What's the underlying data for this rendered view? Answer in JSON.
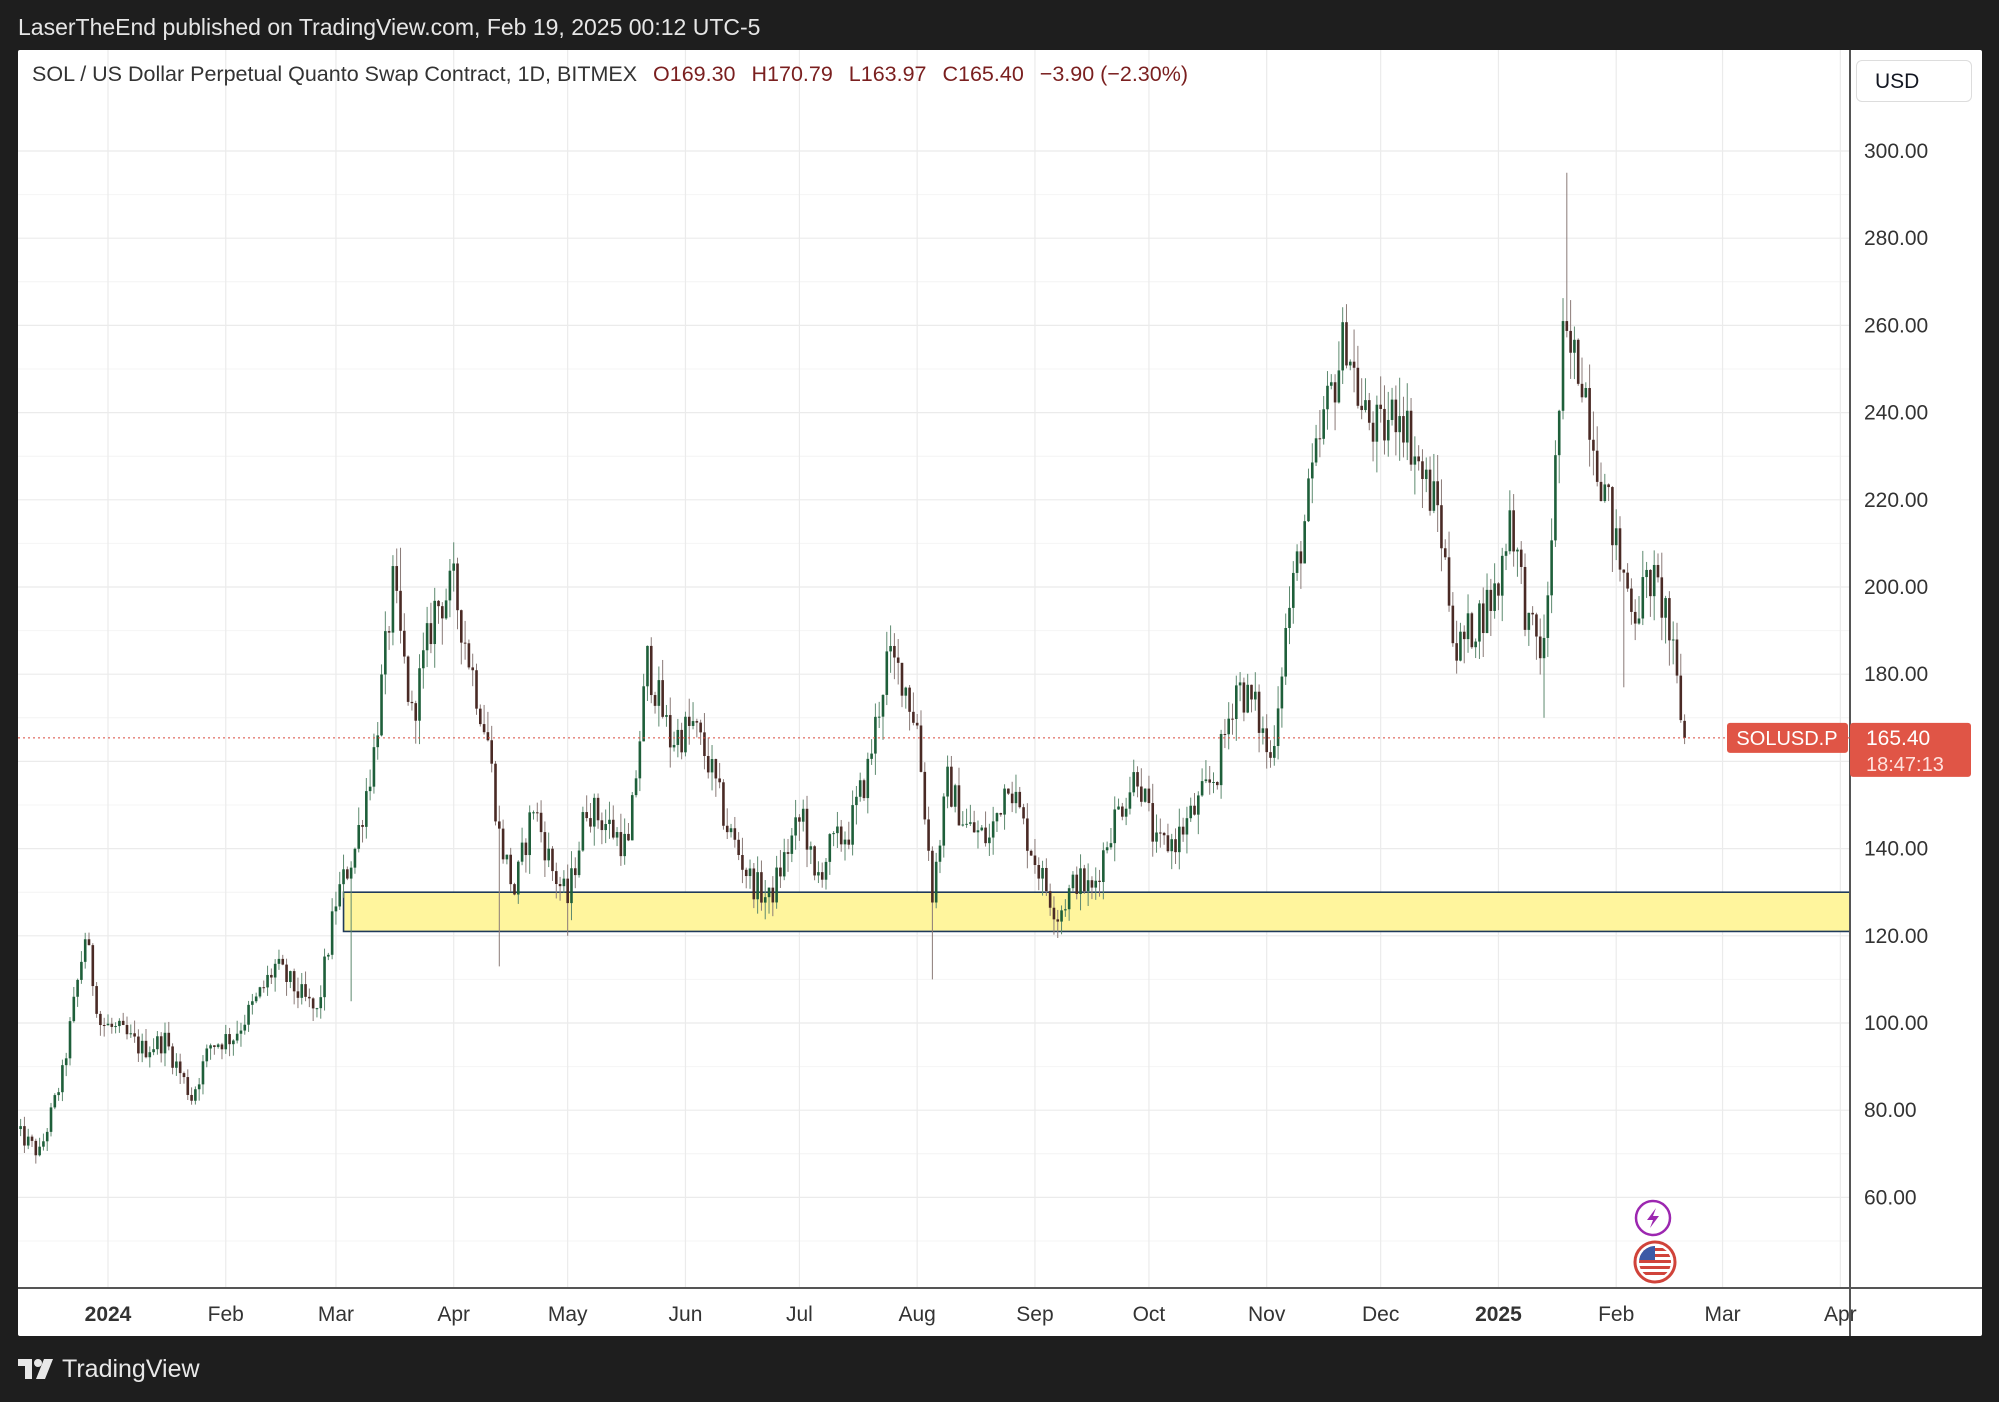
{
  "header": {
    "published_by": "LaserTheEnd published on TradingView.com, Feb 19, 2025 00:12 UTC-5"
  },
  "legend": {
    "symbol": "SOL / US Dollar Perpetual Quanto Swap Contract, 1D, BITMEX",
    "open": "O169.30",
    "high": "H170.79",
    "low": "L163.97",
    "close": "C165.40",
    "change": "−3.90 (−2.30%)"
  },
  "currency_button": "USD",
  "price_tag": {
    "symbol": "SOLUSD.P",
    "price": "165.40",
    "countdown": "18:47:13"
  },
  "footer": {
    "brand": "TradingView"
  },
  "colors": {
    "up": "#1e5f3a",
    "down": "#4a2a25",
    "price_tag": "#e05546",
    "zone": "#fff59d",
    "grid": "#ebebeb"
  },
  "icons": [
    "flash-icon",
    "us-flag-icon"
  ],
  "chart_data": {
    "type": "candlestick",
    "y_axis": {
      "ticks": [
        "300.00",
        "280.00",
        "260.00",
        "240.00",
        "220.00",
        "200.00",
        "180.00",
        "160.00",
        "140.00",
        "120.00",
        "100.00",
        "80.00",
        "60.00"
      ],
      "tick_values": [
        300,
        280,
        260,
        240,
        220,
        200,
        180,
        160,
        140,
        120,
        100,
        80,
        60
      ],
      "range": [
        40,
        312
      ]
    },
    "x_axis": {
      "ticks": [
        "2024",
        "Feb",
        "Mar",
        "Apr",
        "May",
        "Jun",
        "Jul",
        "Aug",
        "Sep",
        "Oct",
        "Nov",
        "Dec",
        "2025",
        "Feb",
        "Mar",
        "Apr"
      ],
      "tick_dates": [
        "2024-01-01",
        "2024-02-01",
        "2024-03-01",
        "2024-04-01",
        "2024-05-01",
        "2024-06-01",
        "2024-07-01",
        "2024-08-01",
        "2024-09-01",
        "2024-10-01",
        "2024-11-01",
        "2024-12-01",
        "2025-01-01",
        "2025-02-01",
        "2025-03-01",
        "2025-04-01"
      ],
      "bold_ticks": [
        "2024",
        "2025"
      ]
    },
    "support_zone": {
      "low": 121,
      "high": 130
    },
    "last_price": 165.4,
    "close_path": [
      [
        "2023-12-08",
        75
      ],
      [
        "2023-12-14",
        70
      ],
      [
        "2023-12-20",
        88
      ],
      [
        "2023-12-26",
        120
      ],
      [
        "2023-12-30",
        100
      ],
      [
        "2024-01-04",
        98
      ],
      [
        "2024-01-10",
        94
      ],
      [
        "2024-01-16",
        96
      ],
      [
        "2024-01-23",
        83
      ],
      [
        "2024-01-28",
        95
      ],
      [
        "2024-02-03",
        97
      ],
      [
        "2024-02-09",
        105
      ],
      [
        "2024-02-14",
        113
      ],
      [
        "2024-02-20",
        107
      ],
      [
        "2024-02-25",
        102
      ],
      [
        "2024-03-01",
        128
      ],
      [
        "2024-03-06",
        140
      ],
      [
        "2024-03-11",
        162
      ],
      [
        "2024-03-16",
        200
      ],
      [
        "2024-03-21",
        170
      ],
      [
        "2024-03-27",
        195
      ],
      [
        "2024-04-01",
        200
      ],
      [
        "2024-04-06",
        180
      ],
      [
        "2024-04-10",
        165
      ],
      [
        "2024-04-13",
        143
      ],
      [
        "2024-04-17",
        130
      ],
      [
        "2024-04-22",
        150
      ],
      [
        "2024-04-27",
        135
      ],
      [
        "2024-05-01",
        128
      ],
      [
        "2024-05-06",
        150
      ],
      [
        "2024-05-12",
        145
      ],
      [
        "2024-05-17",
        140
      ],
      [
        "2024-05-22",
        183
      ],
      [
        "2024-05-28",
        165
      ],
      [
        "2024-06-03",
        168
      ],
      [
        "2024-06-07",
        160
      ],
      [
        "2024-06-12",
        145
      ],
      [
        "2024-06-18",
        133
      ],
      [
        "2024-06-23",
        128
      ],
      [
        "2024-06-28",
        140
      ],
      [
        "2024-07-02",
        148
      ],
      [
        "2024-07-05",
        132
      ],
      [
        "2024-07-09",
        140
      ],
      [
        "2024-07-14",
        144
      ],
      [
        "2024-07-19",
        158
      ],
      [
        "2024-07-24",
        183
      ],
      [
        "2024-07-28",
        180
      ],
      [
        "2024-08-01",
        168
      ],
      [
        "2024-08-05",
        130
      ],
      [
        "2024-08-09",
        155
      ],
      [
        "2024-08-14",
        145
      ],
      [
        "2024-08-20",
        142
      ],
      [
        "2024-08-25",
        157
      ],
      [
        "2024-08-29",
        145
      ],
      [
        "2024-09-03",
        133
      ],
      [
        "2024-09-07",
        125
      ],
      [
        "2024-09-12",
        133
      ],
      [
        "2024-09-16",
        130
      ],
      [
        "2024-09-21",
        145
      ],
      [
        "2024-09-28",
        158
      ],
      [
        "2024-10-03",
        140
      ],
      [
        "2024-10-08",
        142
      ],
      [
        "2024-10-14",
        150
      ],
      [
        "2024-10-19",
        158
      ],
      [
        "2024-10-24",
        178
      ],
      [
        "2024-10-29",
        172
      ],
      [
        "2024-11-02",
        160
      ],
      [
        "2024-11-06",
        190
      ],
      [
        "2024-11-11",
        215
      ],
      [
        "2024-11-16",
        238
      ],
      [
        "2024-11-22",
        258
      ],
      [
        "2024-11-26",
        240
      ],
      [
        "2024-12-01",
        235
      ],
      [
        "2024-12-06",
        242
      ],
      [
        "2024-12-12",
        225
      ],
      [
        "2024-12-16",
        218
      ],
      [
        "2024-12-21",
        185
      ],
      [
        "2024-12-26",
        192
      ],
      [
        "2025-01-01",
        200
      ],
      [
        "2025-01-04",
        218
      ],
      [
        "2025-01-09",
        190
      ],
      [
        "2025-01-13",
        185
      ],
      [
        "2025-01-18",
        255
      ],
      [
        "2025-01-23",
        250
      ],
      [
        "2025-01-27",
        230
      ],
      [
        "2025-02-02",
        205
      ],
      [
        "2025-02-06",
        195
      ],
      [
        "2025-02-10",
        202
      ],
      [
        "2025-02-14",
        195
      ],
      [
        "2025-02-19",
        165.4
      ]
    ]
  }
}
